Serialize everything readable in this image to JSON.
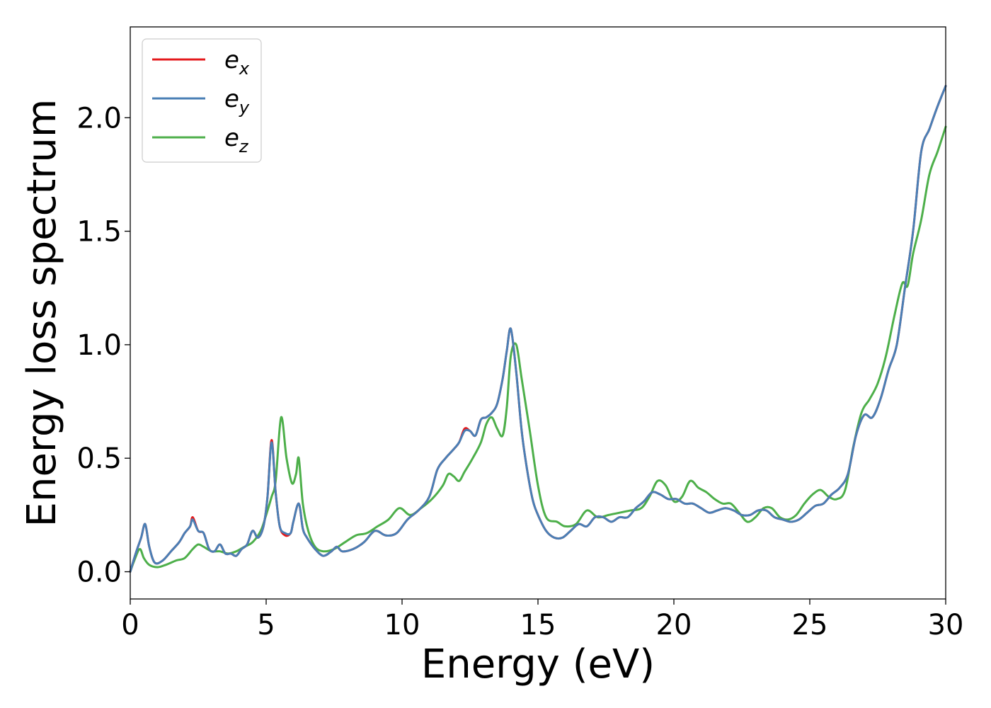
{
  "chart_data": {
    "type": "line",
    "title": "",
    "xlabel": "Energy (eV)",
    "ylabel": "Energy loss spectrum",
    "xlim": [
      0,
      30
    ],
    "ylim": [
      -0.12,
      2.4
    ],
    "xticks": [
      0,
      5,
      10,
      15,
      20,
      25,
      30
    ],
    "xtick_labels": [
      "0",
      "5",
      "10",
      "15",
      "20",
      "25",
      "30"
    ],
    "yticks": [
      0.0,
      0.5,
      1.0,
      1.5,
      2.0
    ],
    "ytick_labels": [
      "0.0",
      "0.5",
      "1.0",
      "1.5",
      "2.0"
    ],
    "grid": false,
    "legend_position": "upper-left",
    "series": [
      {
        "name": "e_x",
        "legend_base": "e",
        "legend_sub": "x",
        "color": "#e41a1c",
        "x": [
          0,
          0.2,
          0.4,
          0.55,
          0.7,
          0.9,
          1.2,
          1.5,
          1.8,
          2.0,
          2.2,
          2.3,
          2.5,
          2.7,
          2.9,
          3.1,
          3.3,
          3.5,
          3.7,
          3.9,
          4.1,
          4.3,
          4.5,
          4.7,
          4.9,
          5.05,
          5.2,
          5.35,
          5.5,
          5.7,
          5.9,
          6.0,
          6.2,
          6.35,
          6.5,
          6.8,
          7.1,
          7.4,
          7.6,
          7.8,
          8.2,
          8.6,
          9.0,
          9.4,
          9.8,
          10.2,
          10.6,
          11.0,
          11.3,
          11.6,
          11.9,
          12.1,
          12.3,
          12.5,
          12.7,
          12.9,
          13.1,
          13.3,
          13.5,
          13.7,
          13.85,
          14.0,
          14.2,
          14.4,
          14.6,
          14.8,
          15.0,
          15.3,
          15.6,
          15.9,
          16.2,
          16.5,
          16.8,
          17.1,
          17.4,
          17.7,
          18.0,
          18.3,
          18.6,
          18.9,
          19.2,
          19.5,
          19.8,
          20.1,
          20.4,
          20.7,
          21.0,
          21.3,
          21.6,
          21.9,
          22.2,
          22.5,
          22.8,
          23.1,
          23.4,
          23.7,
          24.0,
          24.3,
          24.6,
          24.9,
          25.2,
          25.5,
          25.8,
          26.1,
          26.4,
          26.7,
          27.0,
          27.3,
          27.6,
          27.9,
          28.2,
          28.5,
          28.8,
          29.1,
          29.4,
          29.7,
          30.0
        ],
        "y": [
          0.0,
          0.08,
          0.15,
          0.21,
          0.11,
          0.04,
          0.05,
          0.09,
          0.13,
          0.17,
          0.2,
          0.24,
          0.18,
          0.17,
          0.1,
          0.09,
          0.12,
          0.08,
          0.08,
          0.07,
          0.1,
          0.12,
          0.18,
          0.15,
          0.2,
          0.33,
          0.58,
          0.35,
          0.2,
          0.16,
          0.17,
          0.22,
          0.3,
          0.19,
          0.15,
          0.1,
          0.07,
          0.09,
          0.11,
          0.09,
          0.1,
          0.13,
          0.18,
          0.16,
          0.17,
          0.23,
          0.27,
          0.33,
          0.45,
          0.5,
          0.54,
          0.57,
          0.63,
          0.62,
          0.6,
          0.67,
          0.68,
          0.7,
          0.74,
          0.85,
          0.97,
          1.07,
          0.88,
          0.62,
          0.45,
          0.32,
          0.25,
          0.18,
          0.15,
          0.15,
          0.18,
          0.21,
          0.2,
          0.24,
          0.24,
          0.22,
          0.24,
          0.24,
          0.28,
          0.31,
          0.35,
          0.34,
          0.32,
          0.32,
          0.3,
          0.3,
          0.28,
          0.26,
          0.27,
          0.28,
          0.27,
          0.25,
          0.25,
          0.27,
          0.27,
          0.24,
          0.23,
          0.22,
          0.23,
          0.26,
          0.29,
          0.3,
          0.34,
          0.37,
          0.43,
          0.6,
          0.69,
          0.68,
          0.76,
          0.89,
          1.0,
          1.25,
          1.5,
          1.85,
          1.95,
          2.05,
          2.14
        ]
      },
      {
        "name": "e_y",
        "legend_base": "e",
        "legend_sub": "y",
        "color": "#4a7fb5",
        "x": [
          0,
          0.2,
          0.4,
          0.55,
          0.7,
          0.9,
          1.2,
          1.5,
          1.8,
          2.0,
          2.2,
          2.3,
          2.5,
          2.7,
          2.9,
          3.1,
          3.3,
          3.5,
          3.7,
          3.9,
          4.1,
          4.3,
          4.5,
          4.7,
          4.9,
          5.05,
          5.2,
          5.35,
          5.5,
          5.7,
          5.9,
          6.0,
          6.2,
          6.35,
          6.5,
          6.8,
          7.1,
          7.4,
          7.6,
          7.8,
          8.2,
          8.6,
          9.0,
          9.4,
          9.8,
          10.2,
          10.6,
          11.0,
          11.3,
          11.6,
          11.9,
          12.1,
          12.3,
          12.5,
          12.7,
          12.9,
          13.1,
          13.3,
          13.5,
          13.7,
          13.85,
          14.0,
          14.2,
          14.4,
          14.6,
          14.8,
          15.0,
          15.3,
          15.6,
          15.9,
          16.2,
          16.5,
          16.8,
          17.1,
          17.4,
          17.7,
          18.0,
          18.3,
          18.6,
          18.9,
          19.2,
          19.5,
          19.8,
          20.1,
          20.4,
          20.7,
          21.0,
          21.3,
          21.6,
          21.9,
          22.2,
          22.5,
          22.8,
          23.1,
          23.4,
          23.7,
          24.0,
          24.3,
          24.6,
          24.9,
          25.2,
          25.5,
          25.8,
          26.1,
          26.4,
          26.7,
          27.0,
          27.3,
          27.6,
          27.9,
          28.2,
          28.5,
          28.8,
          29.1,
          29.4,
          29.7,
          30.0
        ],
        "y": [
          0.0,
          0.08,
          0.15,
          0.21,
          0.11,
          0.04,
          0.05,
          0.09,
          0.13,
          0.17,
          0.2,
          0.23,
          0.18,
          0.17,
          0.1,
          0.09,
          0.12,
          0.08,
          0.08,
          0.07,
          0.1,
          0.12,
          0.18,
          0.15,
          0.2,
          0.33,
          0.57,
          0.35,
          0.2,
          0.17,
          0.17,
          0.22,
          0.3,
          0.19,
          0.15,
          0.1,
          0.07,
          0.09,
          0.11,
          0.09,
          0.1,
          0.13,
          0.18,
          0.16,
          0.17,
          0.23,
          0.27,
          0.33,
          0.45,
          0.5,
          0.54,
          0.57,
          0.62,
          0.62,
          0.6,
          0.67,
          0.68,
          0.7,
          0.74,
          0.85,
          0.97,
          1.07,
          0.88,
          0.62,
          0.45,
          0.32,
          0.25,
          0.18,
          0.15,
          0.15,
          0.18,
          0.21,
          0.2,
          0.24,
          0.24,
          0.22,
          0.24,
          0.24,
          0.28,
          0.31,
          0.35,
          0.34,
          0.32,
          0.32,
          0.3,
          0.3,
          0.28,
          0.26,
          0.27,
          0.28,
          0.27,
          0.25,
          0.25,
          0.27,
          0.27,
          0.24,
          0.23,
          0.22,
          0.23,
          0.26,
          0.29,
          0.3,
          0.34,
          0.37,
          0.43,
          0.6,
          0.69,
          0.68,
          0.76,
          0.89,
          1.0,
          1.25,
          1.5,
          1.85,
          1.95,
          2.05,
          2.14
        ]
      },
      {
        "name": "e_z",
        "legend_base": "e",
        "legend_sub": "z",
        "color": "#4daf4a",
        "x": [
          0,
          0.15,
          0.35,
          0.5,
          0.7,
          1.0,
          1.3,
          1.7,
          2.0,
          2.3,
          2.5,
          2.7,
          3.0,
          3.3,
          3.6,
          3.9,
          4.2,
          4.5,
          4.8,
          5.0,
          5.2,
          5.35,
          5.55,
          5.75,
          5.95,
          6.1,
          6.2,
          6.35,
          6.55,
          6.8,
          7.1,
          7.5,
          7.9,
          8.3,
          8.7,
          9.1,
          9.5,
          9.9,
          10.3,
          10.7,
          11.1,
          11.5,
          11.7,
          11.9,
          12.1,
          12.3,
          12.6,
          12.9,
          13.1,
          13.3,
          13.5,
          13.7,
          13.85,
          14.0,
          14.2,
          14.4,
          14.7,
          15.0,
          15.3,
          15.7,
          16.0,
          16.4,
          16.8,
          17.2,
          17.6,
          18.0,
          18.4,
          18.8,
          19.1,
          19.4,
          19.7,
          20.0,
          20.3,
          20.6,
          20.9,
          21.2,
          21.5,
          21.8,
          22.1,
          22.4,
          22.7,
          23.0,
          23.3,
          23.6,
          23.9,
          24.2,
          24.5,
          24.8,
          25.1,
          25.4,
          25.7,
          26.0,
          26.3,
          26.6,
          26.9,
          27.2,
          27.5,
          27.8,
          28.1,
          28.4,
          28.6,
          28.8,
          29.1,
          29.4,
          29.7,
          30.0
        ],
        "y": [
          0.0,
          0.05,
          0.1,
          0.06,
          0.03,
          0.02,
          0.03,
          0.05,
          0.06,
          0.1,
          0.12,
          0.11,
          0.09,
          0.09,
          0.08,
          0.09,
          0.11,
          0.13,
          0.18,
          0.25,
          0.33,
          0.4,
          0.68,
          0.5,
          0.39,
          0.43,
          0.5,
          0.3,
          0.18,
          0.11,
          0.09,
          0.1,
          0.13,
          0.16,
          0.17,
          0.2,
          0.23,
          0.28,
          0.25,
          0.28,
          0.32,
          0.38,
          0.43,
          0.42,
          0.4,
          0.44,
          0.5,
          0.57,
          0.65,
          0.68,
          0.63,
          0.6,
          0.72,
          0.95,
          1.0,
          0.85,
          0.62,
          0.38,
          0.24,
          0.22,
          0.2,
          0.21,
          0.27,
          0.24,
          0.25,
          0.26,
          0.27,
          0.28,
          0.33,
          0.4,
          0.38,
          0.31,
          0.33,
          0.4,
          0.37,
          0.35,
          0.32,
          0.3,
          0.3,
          0.26,
          0.22,
          0.24,
          0.28,
          0.28,
          0.24,
          0.23,
          0.25,
          0.3,
          0.34,
          0.36,
          0.33,
          0.32,
          0.36,
          0.55,
          0.7,
          0.76,
          0.83,
          0.95,
          1.12,
          1.27,
          1.26,
          1.4,
          1.55,
          1.75,
          1.85,
          1.96
        ]
      }
    ]
  }
}
